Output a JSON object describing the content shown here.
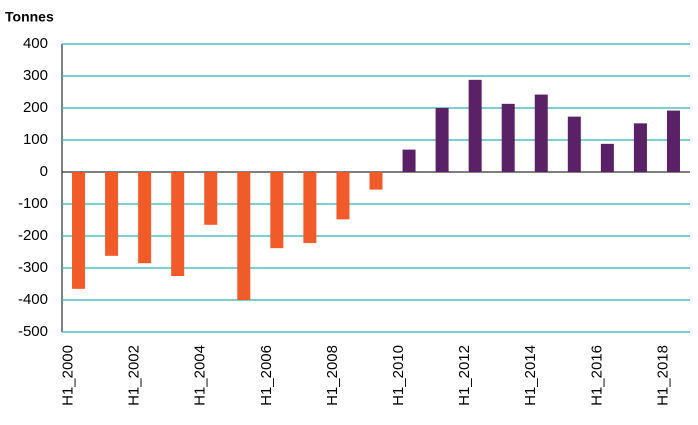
{
  "chart_data": {
    "type": "bar",
    "y_label": "Tonnes",
    "categories": [
      "H1_2000",
      null,
      "H1_2002",
      null,
      "H1_2004",
      null,
      "H1_2006",
      null,
      "H1_2008",
      null,
      "H1_2010",
      null,
      "H1_2012",
      null,
      "H1_2014",
      null,
      "H1_2016",
      null,
      "H1_2018"
    ],
    "values": [
      -365,
      -262,
      -285,
      -325,
      -165,
      -400,
      -238,
      -222,
      -148,
      -55,
      70,
      200,
      288,
      213,
      242,
      173,
      88,
      152,
      192
    ],
    "color_negative": "#f15a29",
    "color_positive": "#5b2166",
    "ylim": [
      -500,
      400
    ],
    "yticks": [
      -500,
      -400,
      -300,
      -200,
      -100,
      0,
      100,
      200,
      300,
      400
    ],
    "grid": true,
    "grid_color": "#2fb3b3"
  }
}
